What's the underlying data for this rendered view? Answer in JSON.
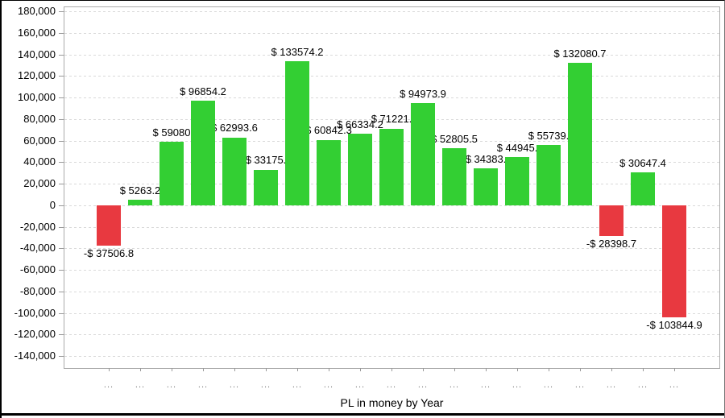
{
  "chart_data": {
    "type": "bar",
    "title": "",
    "xlabel": "PL in money by Year",
    "ylabel": "",
    "ylim": [
      -140000,
      180000
    ],
    "ytick_step": 20000,
    "ytick_labels": [
      "180,000",
      "160,000",
      "140,000",
      "120,000",
      "100,000",
      "80,000",
      "60,000",
      "40,000",
      "20,000",
      "0",
      "-20,000",
      "-40,000",
      "-60,000",
      "-80,000",
      "-100,000",
      "-120,000",
      "-140,000"
    ],
    "ytick_values": [
      180000,
      160000,
      140000,
      120000,
      100000,
      80000,
      60000,
      40000,
      20000,
      0,
      -20000,
      -40000,
      -60000,
      -80000,
      -100000,
      -120000,
      -140000
    ],
    "categories": [
      "...",
      "...",
      "...",
      "...",
      "...",
      "...",
      "...",
      "...",
      "...",
      "...",
      "...",
      "...",
      "...",
      "...",
      "...",
      "...",
      "...",
      "...",
      "..."
    ],
    "values": [
      -37506.8,
      5263.2,
      59080,
      96854.2,
      62993.6,
      33175,
      133574.2,
      60842.3,
      66334.2,
      71221,
      94973.9,
      52805.5,
      34383,
      44945,
      55739,
      132080.7,
      -28398.7,
      30647.4,
      -103844.9
    ],
    "bar_labels": [
      "-$ 37506.8",
      "$ 5263.2",
      "$ 59080",
      "$ 96854.2",
      "$ 62993.6",
      "$ 33175.",
      "$ 133574.2",
      "$ 60842.3",
      "$ 66334.2",
      "$ 71221.",
      "$ 94973.9",
      "$ 52805.5",
      "$ 34383.",
      "$ 44945.",
      "$ 55739.",
      "$ 132080.7",
      "-$ 28398.7",
      "$ 30647.4",
      "-$ 103844.9"
    ],
    "colors": {
      "positive_bar": "#33CF33",
      "negative_bar": "#E83940",
      "gridline": "#D9D9D9",
      "axis_frame": "#ABABAB",
      "tick": "#999999",
      "category_label": "#777777",
      "value_label": "#000000"
    },
    "grid": "horizontal-dashed",
    "legend": "none"
  }
}
